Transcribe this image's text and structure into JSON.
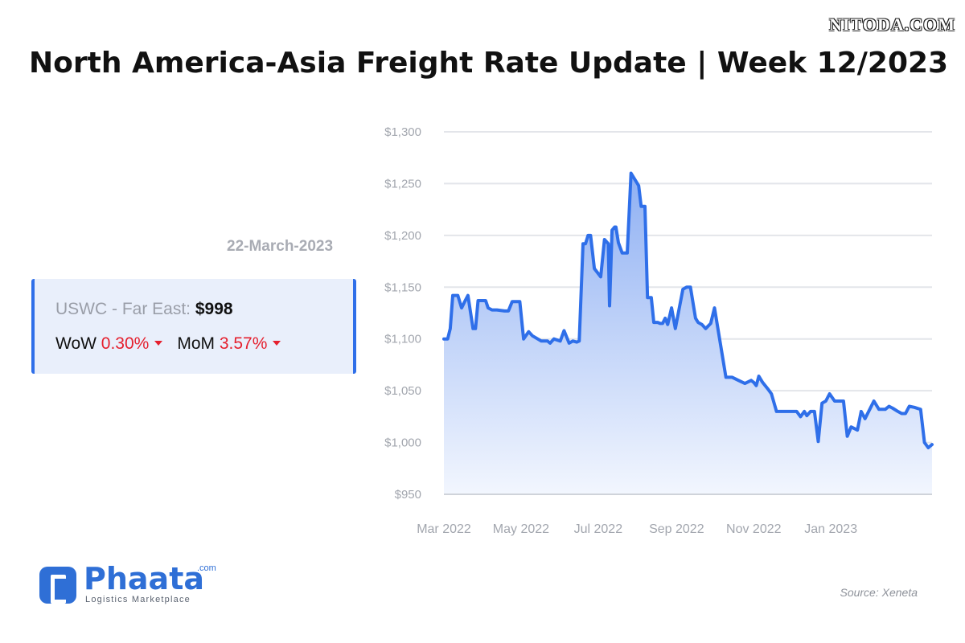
{
  "watermark": "NITODA.COM",
  "title": "North America-Asia Freight Rate Update | Week 12/2023",
  "date": "22-March-2023",
  "stat": {
    "route": "USWC - Far East:",
    "price": "$998",
    "wow_label": "WoW",
    "wow_value": "0.30%",
    "mom_label": "MoM",
    "mom_value": "3.57%"
  },
  "logo": {
    "name": "Phaata",
    "suffix": ".com",
    "tagline": "Logistics Marketplace"
  },
  "source": "Source: Xeneta",
  "colors": {
    "line": "#2f6fe9",
    "area_top": "#8fb0f3",
    "area_bottom": "#f2f6fe",
    "negative": "#e5202e",
    "card_bg": "#e9effb"
  },
  "chart_data": {
    "type": "area",
    "title": "",
    "xlabel": "",
    "ylabel": "",
    "ylim": [
      950,
      1300
    ],
    "y_ticks": [
      950,
      1000,
      1050,
      1100,
      1150,
      1200,
      1250,
      1300
    ],
    "y_tick_labels": [
      "$950",
      "$1,000",
      "$1,050",
      "$1,100",
      "$1,150",
      "$1,200",
      "$1,250",
      "$1,300"
    ],
    "x_ticks": [
      "2022-03-01",
      "2022-05-01",
      "2022-07-01",
      "2022-09-01",
      "2022-11-01",
      "2023-01-01"
    ],
    "x_tick_labels": [
      "Mar 2022",
      "May 2022",
      "Jul 2022",
      "Sep 2022",
      "Nov 2022",
      "Jan 2023"
    ],
    "xlim": [
      "2022-03-01",
      "2023-03-22"
    ],
    "grid": true,
    "series": [
      {
        "x": [
          "2022-03-01",
          "2022-03-04",
          "2022-03-06",
          "2022-03-08",
          "2022-03-12",
          "2022-03-15",
          "2022-03-17",
          "2022-03-20",
          "2022-03-24",
          "2022-03-26",
          "2022-03-28",
          "2022-04-03",
          "2022-04-05",
          "2022-04-08",
          "2022-04-12",
          "2022-04-18",
          "2022-04-21",
          "2022-04-24",
          "2022-04-28",
          "2022-04-30",
          "2022-05-03",
          "2022-05-07",
          "2022-05-10",
          "2022-05-17",
          "2022-05-20",
          "2022-05-22",
          "2022-05-24",
          "2022-05-27",
          "2022-06-01",
          "2022-06-04",
          "2022-06-08",
          "2022-06-11",
          "2022-06-14",
          "2022-06-16",
          "2022-06-19",
          "2022-06-21",
          "2022-06-23",
          "2022-06-25",
          "2022-06-28",
          "2022-07-03",
          "2022-07-06",
          "2022-07-09",
          "2022-07-10",
          "2022-07-12",
          "2022-07-14",
          "2022-07-15",
          "2022-07-17",
          "2022-07-20",
          "2022-07-24",
          "2022-07-27",
          "2022-08-02",
          "2022-08-04",
          "2022-08-07",
          "2022-08-09",
          "2022-08-12",
          "2022-08-14",
          "2022-08-17",
          "2022-08-19",
          "2022-08-21",
          "2022-08-23",
          "2022-08-25",
          "2022-08-28",
          "2022-08-31",
          "2022-09-06",
          "2022-09-09",
          "2022-09-12",
          "2022-09-16",
          "2022-09-18",
          "2022-09-21",
          "2022-09-24",
          "2022-09-28",
          "2022-10-01",
          "2022-10-10",
          "2022-10-15",
          "2022-10-20",
          "2022-10-25",
          "2022-10-30",
          "2022-11-01",
          "2022-11-03",
          "2022-11-05",
          "2022-11-08",
          "2022-11-12",
          "2022-11-15",
          "2022-11-19",
          "2022-11-23",
          "2022-12-02",
          "2022-12-05",
          "2022-12-08",
          "2022-12-11",
          "2022-12-13",
          "2022-12-16",
          "2022-12-19",
          "2022-12-22",
          "2022-12-25",
          "2022-12-28",
          "2022-12-31",
          "2023-01-04",
          "2023-01-07",
          "2023-01-11",
          "2023-01-14",
          "2023-01-17",
          "2023-01-22",
          "2023-01-25",
          "2023-01-28",
          "2023-02-04",
          "2023-02-08",
          "2023-02-13",
          "2023-02-16",
          "2023-02-19",
          "2023-02-23",
          "2023-02-26",
          "2023-03-01",
          "2023-03-04",
          "2023-03-08",
          "2023-03-13",
          "2023-03-16",
          "2023-03-19",
          "2023-03-22"
        ],
        "y": [
          1100,
          1100,
          1110,
          1142,
          1142,
          1130,
          1135,
          1142,
          1110,
          1110,
          1137,
          1137,
          1130,
          1128,
          1128,
          1127,
          1127,
          1136,
          1136,
          1136,
          1100,
          1107,
          1103,
          1098,
          1098,
          1098,
          1096,
          1100,
          1098,
          1108,
          1096,
          1098,
          1097,
          1098,
          1192,
          1192,
          1200,
          1200,
          1168,
          1160,
          1196,
          1192,
          1132,
          1205,
          1208,
          1208,
          1193,
          1183,
          1183,
          1260,
          1248,
          1228,
          1228,
          1140,
          1140,
          1116,
          1116,
          1115,
          1115,
          1120,
          1114,
          1130,
          1110,
          1148,
          1150,
          1150,
          1120,
          1116,
          1114,
          1110,
          1115,
          1130,
          1063,
          1063,
          1060,
          1057,
          1060,
          1058,
          1055,
          1064,
          1058,
          1052,
          1047,
          1030,
          1030,
          1030,
          1030,
          1025,
          1030,
          1026,
          1030,
          1030,
          1001,
          1038,
          1040,
          1047,
          1040,
          1040,
          1040,
          1006,
          1015,
          1012,
          1030,
          1023,
          1040,
          1032,
          1032,
          1035,
          1033,
          1030,
          1028,
          1028,
          1035,
          1034,
          1032,
          1000,
          995,
          998
        ]
      }
    ]
  }
}
